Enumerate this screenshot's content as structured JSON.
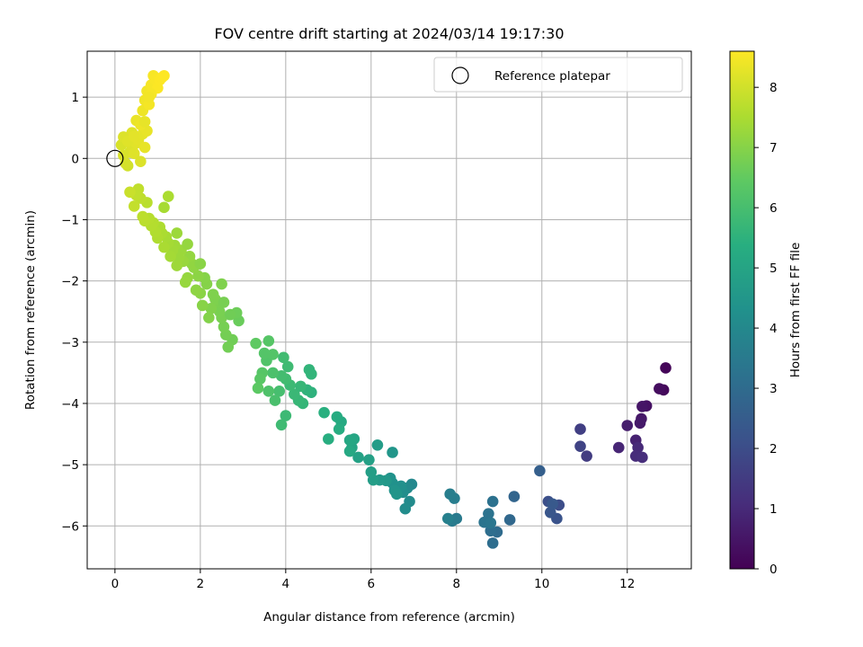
{
  "chart_data": {
    "type": "scatter",
    "title": "FOV centre drift starting at 2024/03/14 19:17:30",
    "xlabel": "Angular distance from reference (arcmin)",
    "ylabel": "Rotation from reference (arcmin)",
    "xlim": [
      -0.65,
      13.5
    ],
    "ylim": [
      -6.7,
      1.75
    ],
    "xticks": [
      0,
      2,
      4,
      6,
      8,
      10,
      12
    ],
    "yticks": [
      1,
      0,
      -1,
      -2,
      -3,
      -4,
      -5,
      -6
    ],
    "grid": true,
    "legend": {
      "position": "top-right",
      "entries": [
        "Reference platepar"
      ]
    },
    "reference_point": {
      "x": 0,
      "y": 0
    },
    "colorbar": {
      "label": "Hours from first FF file",
      "min": 0,
      "max": 8.6,
      "ticks": [
        0,
        1,
        2,
        3,
        4,
        5,
        6,
        7,
        8
      ],
      "colormap": "viridis"
    },
    "points": [
      [
        12.9,
        -3.42,
        0.1
      ],
      [
        12.85,
        -3.78,
        0.2
      ],
      [
        12.75,
        -3.76,
        0.3
      ],
      [
        12.45,
        -4.04,
        0.4
      ],
      [
        12.35,
        -4.05,
        0.5
      ],
      [
        12.33,
        -4.25,
        0.55
      ],
      [
        12.3,
        -4.32,
        0.6
      ],
      [
        12.0,
        -4.36,
        0.7
      ],
      [
        12.2,
        -4.6,
        0.8
      ],
      [
        11.8,
        -4.72,
        0.9
      ],
      [
        12.25,
        -4.72,
        1.0
      ],
      [
        12.2,
        -4.86,
        1.05
      ],
      [
        12.35,
        -4.88,
        1.1
      ],
      [
        11.05,
        -4.86,
        1.5
      ],
      [
        10.9,
        -4.42,
        1.6
      ],
      [
        10.9,
        -4.7,
        1.7
      ],
      [
        10.4,
        -5.66,
        2.0
      ],
      [
        10.15,
        -5.6,
        2.1
      ],
      [
        10.35,
        -5.88,
        2.2
      ],
      [
        10.2,
        -5.78,
        2.3
      ],
      [
        10.25,
        -5.64,
        2.4
      ],
      [
        9.95,
        -5.1,
        2.6
      ],
      [
        9.35,
        -5.52,
        2.8
      ],
      [
        9.25,
        -5.9,
        2.9
      ],
      [
        8.95,
        -6.1,
        3.0
      ],
      [
        8.85,
        -6.28,
        3.05
      ],
      [
        8.8,
        -6.08,
        3.1
      ],
      [
        8.85,
        -5.6,
        3.2
      ],
      [
        8.75,
        -5.8,
        3.25
      ],
      [
        8.65,
        -5.94,
        3.3
      ],
      [
        8.8,
        -5.95,
        3.35
      ],
      [
        8.0,
        -5.88,
        3.5
      ],
      [
        7.9,
        -5.92,
        3.55
      ],
      [
        7.95,
        -5.55,
        3.6
      ],
      [
        7.85,
        -5.48,
        3.65
      ],
      [
        7.8,
        -5.88,
        3.7
      ],
      [
        6.95,
        -5.32,
        4.0
      ],
      [
        6.85,
        -5.38,
        4.05
      ],
      [
        6.9,
        -5.6,
        4.1
      ],
      [
        6.8,
        -5.72,
        4.15
      ],
      [
        6.75,
        -5.45,
        4.2
      ],
      [
        6.7,
        -5.35,
        4.25
      ],
      [
        6.5,
        -5.3,
        4.3
      ],
      [
        6.45,
        -5.22,
        4.35
      ],
      [
        6.55,
        -5.42,
        4.4
      ],
      [
        6.6,
        -5.48,
        4.45
      ],
      [
        6.5,
        -4.8,
        4.5
      ],
      [
        6.35,
        -5.26,
        4.55
      ],
      [
        6.2,
        -5.25,
        4.6
      ],
      [
        6.15,
        -4.68,
        4.7
      ],
      [
        6.05,
        -5.25,
        4.75
      ],
      [
        6.0,
        -5.12,
        4.8
      ],
      [
        5.95,
        -4.92,
        4.85
      ],
      [
        5.7,
        -4.88,
        4.9
      ],
      [
        5.55,
        -4.72,
        5.0
      ],
      [
        5.6,
        -4.58,
        5.05
      ],
      [
        5.5,
        -4.6,
        5.1
      ],
      [
        5.5,
        -4.78,
        5.15
      ],
      [
        5.3,
        -4.3,
        5.2
      ],
      [
        5.2,
        -4.22,
        5.25
      ],
      [
        5.25,
        -4.42,
        5.3
      ],
      [
        5.0,
        -4.58,
        5.35
      ],
      [
        4.9,
        -4.15,
        5.4
      ],
      [
        4.6,
        -3.82,
        5.5
      ],
      [
        4.5,
        -3.78,
        5.55
      ],
      [
        4.6,
        -3.52,
        5.6
      ],
      [
        4.4,
        -4.0,
        5.65
      ],
      [
        4.3,
        -3.95,
        5.7
      ],
      [
        4.2,
        -3.85,
        5.75
      ],
      [
        4.1,
        -3.7,
        5.8
      ],
      [
        4.05,
        -3.4,
        5.85
      ],
      [
        4.0,
        -3.6,
        5.9
      ],
      [
        3.9,
        -3.55,
        5.95
      ],
      [
        3.85,
        -3.8,
        6.0
      ],
      [
        3.75,
        -3.95,
        6.05
      ],
      [
        3.7,
        -3.5,
        6.1
      ],
      [
        3.6,
        -3.8,
        6.15
      ],
      [
        3.55,
        -3.3,
        6.2
      ],
      [
        3.5,
        -3.18,
        6.25
      ],
      [
        3.45,
        -3.5,
        6.3
      ],
      [
        3.4,
        -3.6,
        6.35
      ],
      [
        3.35,
        -3.75,
        6.4
      ],
      [
        3.3,
        -3.02,
        6.45
      ],
      [
        4.0,
        -4.2,
        5.8
      ],
      [
        3.9,
        -4.35,
        5.85
      ],
      [
        3.6,
        -2.98,
        6.3
      ],
      [
        3.7,
        -3.2,
        6.25
      ],
      [
        4.35,
        -3.72,
        5.7
      ],
      [
        4.55,
        -3.45,
        5.6
      ],
      [
        3.95,
        -3.25,
        5.9
      ],
      [
        2.9,
        -2.65,
        6.6
      ],
      [
        2.85,
        -2.52,
        6.65
      ],
      [
        2.75,
        -2.96,
        6.7
      ],
      [
        2.65,
        -3.08,
        6.72
      ],
      [
        2.6,
        -2.88,
        6.75
      ],
      [
        2.55,
        -2.75,
        6.78
      ],
      [
        2.5,
        -2.6,
        6.8
      ],
      [
        2.45,
        -2.5,
        6.82
      ],
      [
        2.4,
        -2.35,
        6.85
      ],
      [
        2.35,
        -2.3,
        6.88
      ],
      [
        2.3,
        -2.22,
        6.9
      ],
      [
        2.25,
        -2.45,
        6.92
      ],
      [
        2.2,
        -2.6,
        6.95
      ],
      [
        2.15,
        -2.05,
        6.98
      ],
      [
        2.1,
        -1.95,
        7.0
      ],
      [
        2.05,
        -2.4,
        7.02
      ],
      [
        2.0,
        -2.2,
        7.05
      ],
      [
        1.95,
        -1.92,
        7.08
      ],
      [
        1.9,
        -2.15,
        7.1
      ],
      [
        1.85,
        -1.78,
        7.12
      ],
      [
        1.8,
        -1.72,
        7.15
      ],
      [
        1.75,
        -1.6,
        7.18
      ],
      [
        1.7,
        -1.95,
        7.2
      ],
      [
        1.65,
        -2.02,
        7.22
      ],
      [
        1.6,
        -1.68,
        7.25
      ],
      [
        1.55,
        -1.5,
        7.28
      ],
      [
        1.5,
        -1.62,
        7.3
      ],
      [
        1.45,
        -1.75,
        7.32
      ],
      [
        1.4,
        -1.42,
        7.35
      ],
      [
        1.35,
        -1.5,
        7.38
      ],
      [
        1.3,
        -1.6,
        7.4
      ],
      [
        1.25,
        -1.38,
        7.42
      ],
      [
        1.2,
        -1.28,
        7.45
      ],
      [
        1.15,
        -1.45,
        7.48
      ],
      [
        1.1,
        -1.22,
        7.5
      ],
      [
        1.05,
        -1.12,
        7.52
      ],
      [
        1.0,
        -1.3,
        7.55
      ],
      [
        0.95,
        -1.2,
        7.58
      ],
      [
        0.9,
        -1.05,
        7.6
      ],
      [
        0.85,
        -1.1,
        7.62
      ],
      [
        0.8,
        -0.98,
        7.65
      ],
      [
        0.75,
        -0.72,
        7.68
      ],
      [
        0.7,
        -1.02,
        7.7
      ],
      [
        0.65,
        -0.95,
        7.72
      ],
      [
        0.6,
        -0.65,
        7.75
      ],
      [
        0.55,
        -0.5,
        7.78
      ],
      [
        0.5,
        -0.6,
        7.8
      ],
      [
        0.45,
        -0.78,
        7.82
      ],
      [
        1.25,
        -0.62,
        7.5
      ],
      [
        1.15,
        -0.8,
        7.45
      ],
      [
        1.45,
        -1.22,
        7.3
      ],
      [
        1.7,
        -1.4,
        7.2
      ],
      [
        2.5,
        -2.05,
        6.9
      ],
      [
        2.7,
        -2.55,
        6.7
      ],
      [
        2.55,
        -2.35,
        6.8
      ],
      [
        2.0,
        -1.72,
        7.05
      ],
      [
        0.35,
        -0.55,
        7.9
      ],
      [
        0.3,
        -0.12,
        8.0
      ],
      [
        0.25,
        -0.08,
        8.05
      ],
      [
        0.2,
        0.05,
        8.1
      ],
      [
        0.35,
        0.1,
        8.12
      ],
      [
        0.4,
        0.2,
        8.15
      ],
      [
        0.45,
        0.08,
        8.2
      ],
      [
        0.5,
        0.25,
        8.22
      ],
      [
        0.55,
        0.3,
        8.25
      ],
      [
        0.6,
        -0.05,
        8.15
      ],
      [
        0.65,
        0.4,
        8.28
      ],
      [
        0.7,
        0.18,
        8.3
      ],
      [
        0.75,
        0.45,
        8.32
      ],
      [
        0.5,
        0.62,
        8.35
      ],
      [
        0.6,
        0.55,
        8.38
      ],
      [
        0.65,
        0.78,
        8.4
      ],
      [
        0.7,
        0.95,
        8.42
      ],
      [
        0.75,
        1.1,
        8.45
      ],
      [
        0.8,
        0.88,
        8.48
      ],
      [
        0.85,
        1.2,
        8.5
      ],
      [
        0.9,
        1.35,
        8.52
      ],
      [
        0.95,
        1.28,
        8.55
      ],
      [
        1.0,
        1.15,
        8.57
      ],
      [
        1.05,
        1.28,
        8.58
      ],
      [
        1.1,
        1.32,
        8.59
      ],
      [
        0.85,
        1.05,
        8.5
      ],
      [
        0.7,
        0.6,
        8.3
      ],
      [
        0.4,
        0.42,
        8.2
      ],
      [
        0.15,
        0.22,
        8.1
      ],
      [
        0.2,
        0.35,
        8.15
      ],
      [
        0.3,
        0.28,
        8.2
      ],
      [
        0.45,
        0.36,
        8.25
      ],
      [
        0.8,
        1.0,
        8.45
      ],
      [
        1.15,
        1.35,
        8.6
      ]
    ]
  }
}
